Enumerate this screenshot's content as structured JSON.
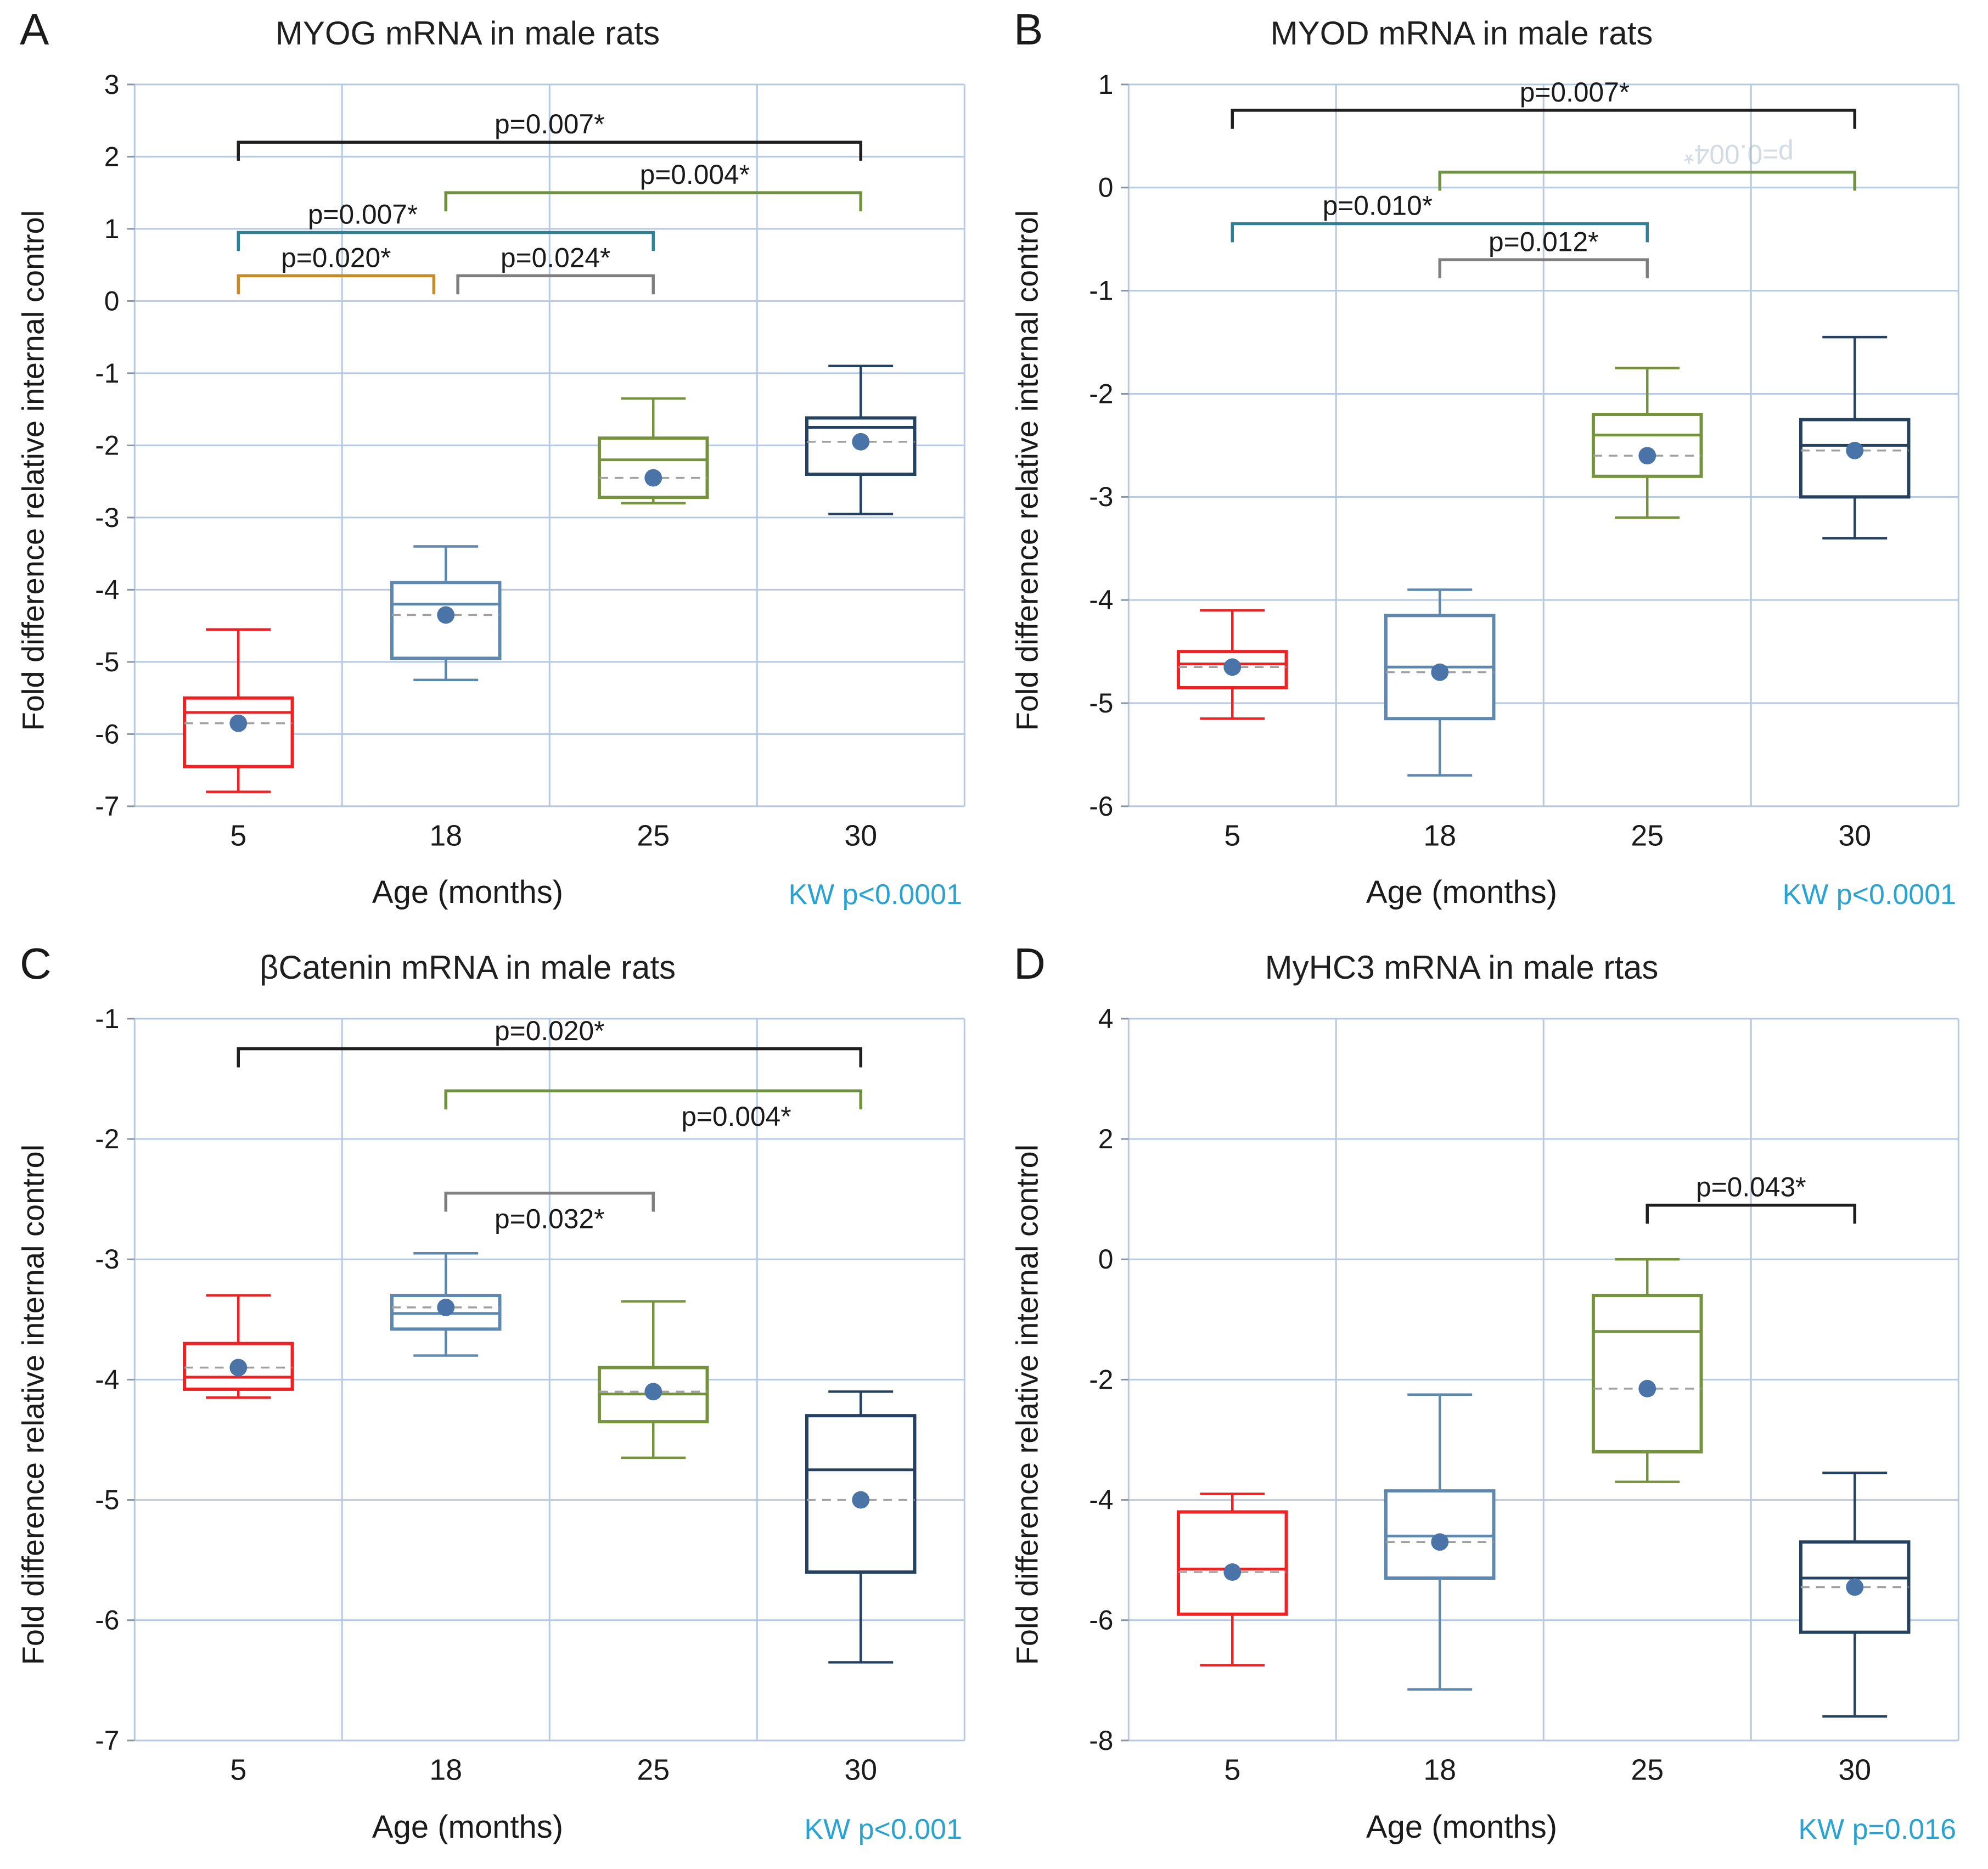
{
  "figure": {
    "background": "#ffffff",
    "grid_color": "#b6c9e2",
    "axis_tick_color": "#8a93a0",
    "text_color": "#1a1a1a",
    "mean_dot_color": "#4a74a8",
    "mean_line_color": "#a0a0a0",
    "kw_color": "#29a4d2",
    "category_colors": {
      "5": "#ee2222",
      "18": "#5f88b0",
      "25": "#75923c",
      "30": "#24415f"
    }
  },
  "chart_data": [
    {
      "letter": "A",
      "title": "MYOG mRNA in male rats",
      "ylabel": "Fold difference relative internal control",
      "xlabel": "Age (months)",
      "kw_text": "KW p<0.0001",
      "type": "box",
      "categories": [
        "5",
        "18",
        "25",
        "30"
      ],
      "ylim": [
        -7,
        3
      ],
      "yticks": [
        3,
        2,
        1,
        0,
        -1,
        -2,
        -3,
        -4,
        -5,
        -6,
        -7
      ],
      "boxes": [
        {
          "category": "5",
          "color": "#ee2222",
          "whisker_low": -6.8,
          "q1": -6.45,
          "median": -5.7,
          "q3": -5.5,
          "whisker_high": -4.55,
          "mean": -5.85
        },
        {
          "category": "18",
          "color": "#5f88b0",
          "whisker_low": -5.25,
          "q1": -4.95,
          "median": -4.2,
          "q3": -3.9,
          "whisker_high": -3.4,
          "mean": -4.35
        },
        {
          "category": "25",
          "color": "#75923c",
          "whisker_low": -2.8,
          "q1": -2.72,
          "median": -2.2,
          "q3": -1.9,
          "whisker_high": -1.35,
          "mean": -2.45
        },
        {
          "category": "30",
          "color": "#24415f",
          "whisker_low": -2.95,
          "q1": -2.4,
          "median": -1.75,
          "q3": -1.62,
          "whisker_high": -0.9,
          "mean": -1.95
        }
      ],
      "brackets": [
        {
          "from": 0,
          "to": 3,
          "y": 2.2,
          "label": "p=0.007*",
          "color": "#1f1f1f",
          "pos": 0.5
        },
        {
          "from": 1,
          "to": 3,
          "y": 1.5,
          "label": "p=0.004*",
          "color": "#6f9240",
          "pos": 0.6
        },
        {
          "from": 0,
          "to": 2,
          "y": 0.95,
          "label": "p=0.007*",
          "color": "#2e7f98",
          "pos": 0.3
        },
        {
          "from": 0,
          "to": 1,
          "y": 0.35,
          "label": "p=0.020*",
          "color": "#c38b2e",
          "pos": 0.5,
          "x2_off": -22
        },
        {
          "from": 1,
          "to": 2,
          "y": 0.35,
          "label": "p=0.024*",
          "color": "#7f7f7f",
          "pos": 0.5,
          "x1_off": 22
        }
      ]
    },
    {
      "letter": "B",
      "title": "MYOD mRNA in male rats",
      "ylabel": "Fold difference relative internal control",
      "xlabel": "Age (months)",
      "kw_text": "KW p<0.0001",
      "type": "box",
      "categories": [
        "5",
        "18",
        "25",
        "30"
      ],
      "ylim": [
        -6,
        1
      ],
      "yticks": [
        1,
        0,
        -1,
        -2,
        -3,
        -4,
        -5,
        -6
      ],
      "boxes": [
        {
          "category": "5",
          "color": "#ee2222",
          "whisker_low": -5.15,
          "q1": -4.85,
          "median": -4.62,
          "q3": -4.5,
          "whisker_high": -4.1,
          "mean": -4.65
        },
        {
          "category": "18",
          "color": "#5f88b0",
          "whisker_low": -5.7,
          "q1": -5.15,
          "median": -4.65,
          "q3": -4.15,
          "whisker_high": -3.9,
          "mean": -4.7
        },
        {
          "category": "25",
          "color": "#75923c",
          "whisker_low": -3.2,
          "q1": -2.8,
          "median": -2.4,
          "q3": -2.2,
          "whisker_high": -1.75,
          "mean": -2.6
        },
        {
          "category": "30",
          "color": "#24415f",
          "whisker_low": -3.4,
          "q1": -3.0,
          "median": -2.5,
          "q3": -2.25,
          "whisker_high": -1.45,
          "mean": -2.55
        }
      ],
      "brackets": [
        {
          "from": 0,
          "to": 3,
          "y": 0.75,
          "label": "p=0.007*",
          "color": "#1f1f1f",
          "pos": 0.55
        },
        {
          "from": 1,
          "to": 3,
          "y": 0.15,
          "label": "p=0.004*",
          "color": "#6f9240",
          "pos": 0.72,
          "faint": true,
          "flip": true
        },
        {
          "from": 0,
          "to": 2,
          "y": -0.35,
          "label": "p=0.010*",
          "color": "#2e7f98",
          "pos": 0.35
        },
        {
          "from": 1,
          "to": 2,
          "y": -0.7,
          "label": "p=0.012*",
          "color": "#7f7f7f",
          "pos": 0.5
        }
      ]
    },
    {
      "letter": "C",
      "title": "βCatenin mRNA in male rats",
      "ylabel": "Fold difference relative internal control",
      "xlabel": "Age (months)",
      "kw_text": "KW p<0.001",
      "type": "box",
      "categories": [
        "5",
        "18",
        "25",
        "30"
      ],
      "ylim": [
        -7,
        -1
      ],
      "yticks": [
        -1,
        -2,
        -3,
        -4,
        -5,
        -6,
        -7
      ],
      "boxes": [
        {
          "category": "5",
          "color": "#ee2222",
          "whisker_low": -4.15,
          "q1": -4.08,
          "median": -3.98,
          "q3": -3.7,
          "whisker_high": -3.3,
          "mean": -3.9
        },
        {
          "category": "18",
          "color": "#5f88b0",
          "whisker_low": -3.8,
          "q1": -3.58,
          "median": -3.45,
          "q3": -3.3,
          "whisker_high": -2.95,
          "mean": -3.4
        },
        {
          "category": "25",
          "color": "#75923c",
          "whisker_low": -4.65,
          "q1": -4.35,
          "median": -4.12,
          "q3": -3.9,
          "whisker_high": -3.35,
          "mean": -4.1
        },
        {
          "category": "30",
          "color": "#24415f",
          "whisker_low": -6.35,
          "q1": -5.6,
          "median": -4.75,
          "q3": -4.3,
          "whisker_high": -4.1,
          "mean": -5.0
        }
      ],
      "brackets": [
        {
          "from": 0,
          "to": 3,
          "y": -1.25,
          "label": "p=0.020*",
          "color": "#1f1f1f",
          "pos": 0.5
        },
        {
          "from": 1,
          "to": 3,
          "y": -1.6,
          "label": "p=0.004*",
          "color": "#6f9240",
          "pos": 0.7,
          "below": true
        },
        {
          "from": 1,
          "to": 2,
          "y": -2.45,
          "label": "p=0.032*",
          "color": "#7f7f7f",
          "pos": 0.5,
          "below": true
        }
      ]
    },
    {
      "letter": "D",
      "title": "MyHC3 mRNA in male rtas",
      "ylabel": "Fold difference relative internal control",
      "xlabel": "Age (months)",
      "kw_text": "KW p=0.016",
      "type": "box",
      "categories": [
        "5",
        "18",
        "25",
        "30"
      ],
      "ylim": [
        -8,
        4
      ],
      "yticks": [
        4,
        2,
        0,
        -2,
        -4,
        -6,
        -8
      ],
      "boxes": [
        {
          "category": "5",
          "color": "#ee2222",
          "whisker_low": -6.75,
          "q1": -5.9,
          "median": -5.15,
          "q3": -4.2,
          "whisker_high": -3.9,
          "mean": -5.2
        },
        {
          "category": "18",
          "color": "#5f88b0",
          "whisker_low": -7.15,
          "q1": -5.3,
          "median": -4.6,
          "q3": -3.85,
          "whisker_high": -2.25,
          "mean": -4.7
        },
        {
          "category": "25",
          "color": "#75923c",
          "whisker_low": -3.7,
          "q1": -3.2,
          "median": -1.2,
          "q3": -0.6,
          "whisker_high": 0.0,
          "mean": -2.15
        },
        {
          "category": "30",
          "color": "#24415f",
          "whisker_low": -7.6,
          "q1": -6.2,
          "median": -5.3,
          "q3": -4.7,
          "whisker_high": -3.55,
          "mean": -5.45
        }
      ],
      "brackets": [
        {
          "from": 2,
          "to": 3,
          "y": 0.9,
          "label": "p=0.043*",
          "color": "#1f1f1f",
          "pos": 0.5
        }
      ]
    }
  ]
}
